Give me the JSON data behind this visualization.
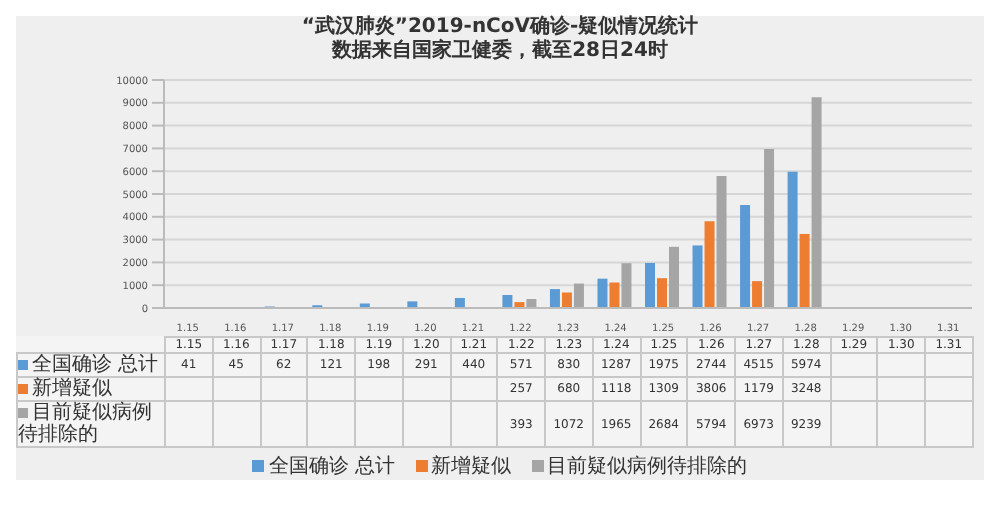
{
  "chart_data": {
    "type": "bar",
    "title": "“武汉肺炎”2019-nCoV确诊-疑似情况统计",
    "subtitle": "数据来自国家卫健委，截至28日24时",
    "categories": [
      "1.15",
      "1.16",
      "1.17",
      "1.18",
      "1.19",
      "1.20",
      "1.21",
      "1.22",
      "1.23",
      "1.24",
      "1.25",
      "1.26",
      "1.27",
      "1.28",
      "1.29",
      "1.30",
      "1.31"
    ],
    "series": [
      {
        "name": "全国确诊 总计",
        "color": "#5b9bd5",
        "values": [
          41,
          45,
          62,
          121,
          198,
          291,
          440,
          571,
          830,
          1287,
          1975,
          2744,
          4515,
          5974,
          null,
          null,
          null
        ]
      },
      {
        "name": "新增疑似",
        "color": "#ed7d31",
        "values": [
          null,
          null,
          null,
          null,
          null,
          null,
          null,
          257,
          680,
          1118,
          1309,
          3806,
          1179,
          3248,
          null,
          null,
          null
        ]
      },
      {
        "name": "目前疑似病例待排除的",
        "color": "#a5a5a5",
        "values": [
          null,
          null,
          null,
          null,
          null,
          null,
          null,
          393,
          1072,
          1965,
          2684,
          5794,
          6973,
          9239,
          null,
          null,
          null
        ]
      }
    ],
    "ylim": [
      0,
      10000
    ],
    "yticks": [
      0,
      1000,
      2000,
      3000,
      4000,
      5000,
      6000,
      7000,
      8000,
      9000,
      10000
    ],
    "grid": "y",
    "data_labels": true,
    "legend": "bottom"
  }
}
